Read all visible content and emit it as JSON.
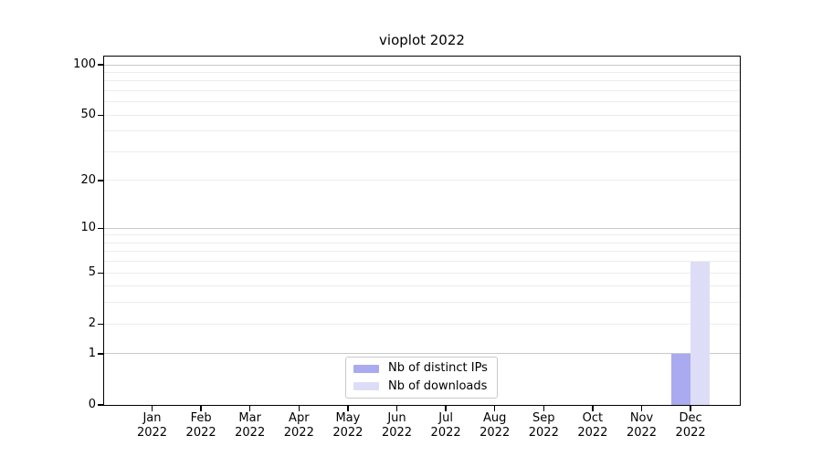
{
  "chart_data": {
    "type": "bar",
    "title": "vioplot 2022",
    "categories": [
      "Jan 2022",
      "Feb 2022",
      "Mar 2022",
      "Apr 2022",
      "May 2022",
      "Jun 2022",
      "Jul 2022",
      "Aug 2022",
      "Sep 2022",
      "Oct 2022",
      "Nov 2022",
      "Dec 2022"
    ],
    "x_tick_months": [
      "Jan",
      "Feb",
      "Mar",
      "Apr",
      "May",
      "Jun",
      "Jul",
      "Aug",
      "Sep",
      "Oct",
      "Nov",
      "Dec"
    ],
    "x_tick_year": "2022",
    "series": [
      {
        "name": "Nb of distinct IPs",
        "color": "#aaaaf0",
        "values": [
          0,
          0,
          0,
          0,
          0,
          0,
          0,
          0,
          0,
          0,
          0,
          1
        ]
      },
      {
        "name": "Nb of downloads",
        "color": "#ddddf8",
        "values": [
          0,
          0,
          0,
          0,
          0,
          0,
          0,
          0,
          0,
          0,
          0,
          6
        ]
      }
    ],
    "xlabel": "",
    "ylabel": "",
    "y_axis": {
      "scale": "log1p",
      "tick_values": [
        0,
        1,
        2,
        5,
        10,
        20,
        50,
        100
      ],
      "tick_labels": [
        "0",
        "1",
        "2",
        "5",
        "10",
        "20",
        "50",
        "100"
      ],
      "minor_gridlines": [
        2,
        3,
        4,
        5,
        6,
        7,
        8,
        9,
        20,
        30,
        40,
        50,
        60,
        70,
        80,
        90
      ],
      "major_gridlines": [
        1,
        10,
        100
      ],
      "ylim": [
        0,
        112
      ]
    },
    "grid": true,
    "legend_position": "bottom-center"
  },
  "colors": {
    "background": "#ffffff",
    "axis": "#000000",
    "grid_minor": "#ececec",
    "grid_major": "#c9c9c9",
    "legend_border": "#c9c9c9",
    "bar_distinct_ips": "#aaaaf0",
    "bar_downloads": "#ddddf8"
  }
}
